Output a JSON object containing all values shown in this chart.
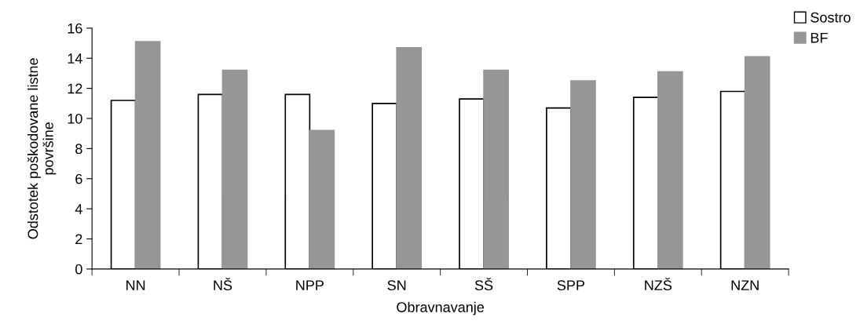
{
  "chart_data": {
    "type": "bar",
    "xlabel": "Obravnavanje",
    "ylabel": "Odstotek poškodovane listne\npovršine",
    "categories": [
      "NN",
      "NŠ",
      "NPP",
      "SN",
      "SŠ",
      "SPP",
      "NZŠ",
      "NZN"
    ],
    "series": [
      {
        "name": "Sostro",
        "color": "#ffffff",
        "values": [
          11.2,
          11.6,
          11.6,
          11.0,
          11.3,
          10.7,
          11.4,
          11.8
        ]
      },
      {
        "name": "BF",
        "color": "#969696",
        "values": [
          15.1,
          13.2,
          9.2,
          14.7,
          13.2,
          12.5,
          13.1,
          14.1
        ]
      }
    ],
    "ylim": [
      0,
      16
    ],
    "yticks": [
      0,
      2,
      4,
      6,
      8,
      10,
      12,
      14,
      16
    ],
    "grid": false,
    "legend": "top right"
  }
}
